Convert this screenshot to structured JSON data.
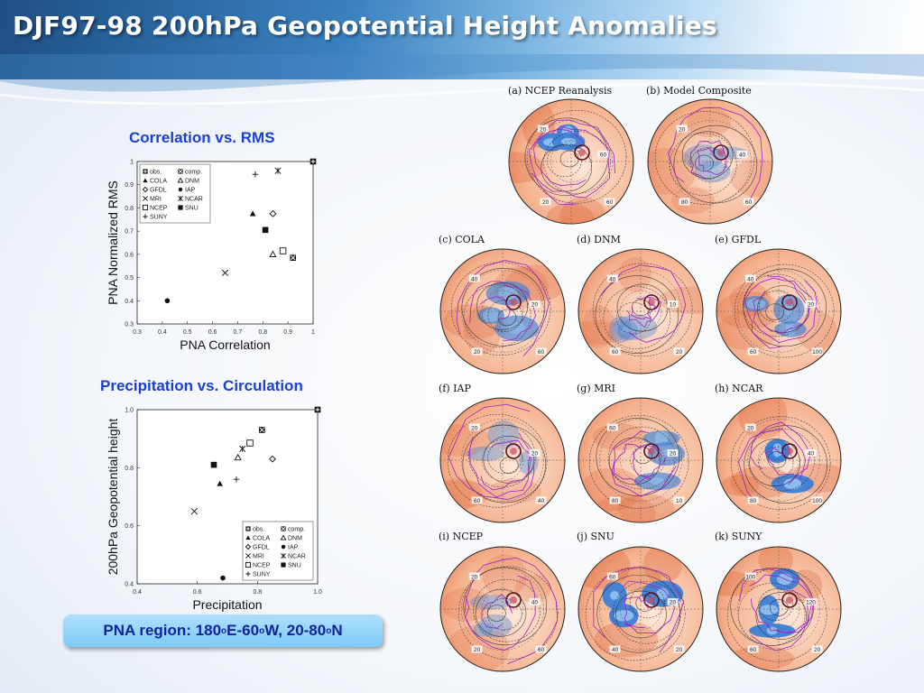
{
  "header": {
    "title": "DJF97-98 200hPa Geopotential Height Anomalies"
  },
  "sections": {
    "corr_rms_title": "Correlation vs. RMS",
    "precip_circ_title": "Precipitation vs. Circulation"
  },
  "pna_region": {
    "prefix": "PNA region: 180",
    "s1": "o",
    "mid1": "E-60",
    "s2": "o",
    "mid2": "W, 20-80",
    "s3": "o",
    "suffix": "N"
  },
  "colors": {
    "accent": "#1a3fd2",
    "banner": "#7ecbf7",
    "positive": "#e07a50",
    "negative": "#3d7fd6",
    "coast": "#a020c8"
  },
  "chart_data": [
    {
      "type": "scatter",
      "title": "",
      "xlabel": "PNA Correlation",
      "ylabel": "PNA Normalized RMS",
      "xlim": [
        0.3,
        1.0
      ],
      "ylim": [
        0.3,
        1.0
      ],
      "xticks": [
        "0.3",
        "0.4",
        "0.5",
        "0.6",
        "0.7",
        "0.8",
        "0.9",
        "1"
      ],
      "yticks": [
        "0.3",
        "0.4",
        "0.5",
        "0.6",
        "0.7",
        "0.8",
        "0.9",
        "1"
      ],
      "legend_position": "top-left",
      "legend": [
        {
          "name": "obs.",
          "marker": "plus-square"
        },
        {
          "name": "comp.",
          "marker": "x-square"
        },
        {
          "name": "COLA",
          "marker": "filled-triangle"
        },
        {
          "name": "DNM",
          "marker": "open-triangle"
        },
        {
          "name": "GFDL",
          "marker": "open-diamond"
        },
        {
          "name": "IAP",
          "marker": "filled-circle"
        },
        {
          "name": "MRI",
          "marker": "cross"
        },
        {
          "name": "NCAR",
          "marker": "asterisk"
        },
        {
          "name": "NCEP",
          "marker": "open-square"
        },
        {
          "name": "SNU",
          "marker": "filled-square"
        },
        {
          "name": "SUNY",
          "marker": "plus"
        }
      ],
      "series": [
        {
          "name": "obs.",
          "x": [
            1.0
          ],
          "y": [
            1.0
          ]
        },
        {
          "name": "comp.",
          "x": [
            0.92
          ],
          "y": [
            0.585
          ]
        },
        {
          "name": "COLA",
          "x": [
            0.76
          ],
          "y": [
            0.775
          ]
        },
        {
          "name": "DNM",
          "x": [
            0.84
          ],
          "y": [
            0.6
          ]
        },
        {
          "name": "GFDL",
          "x": [
            0.84
          ],
          "y": [
            0.775
          ]
        },
        {
          "name": "IAP",
          "x": [
            0.42
          ],
          "y": [
            0.4
          ]
        },
        {
          "name": "MRI",
          "x": [
            0.65
          ],
          "y": [
            0.52
          ]
        },
        {
          "name": "NCAR",
          "x": [
            0.86
          ],
          "y": [
            0.96
          ]
        },
        {
          "name": "NCEP",
          "x": [
            0.88
          ],
          "y": [
            0.615
          ]
        },
        {
          "name": "SNU",
          "x": [
            0.81
          ],
          "y": [
            0.705
          ]
        },
        {
          "name": "SUNY",
          "x": [
            0.77
          ],
          "y": [
            0.945
          ]
        }
      ]
    },
    {
      "type": "scatter",
      "title": "",
      "xlabel": "Precipitation",
      "ylabel": "200hPa Geopotential height",
      "xlim": [
        0.4,
        1.0
      ],
      "ylim": [
        0.4,
        1.0
      ],
      "xticks": [
        "0.4",
        "0.6",
        "0.8",
        "1.0"
      ],
      "yticks": [
        "0.4",
        "0.6",
        "0.8",
        "1.0"
      ],
      "legend_position": "bottom-right",
      "legend": [
        {
          "name": "obs.",
          "marker": "plus-square"
        },
        {
          "name": "comp.",
          "marker": "x-square"
        },
        {
          "name": "COLA",
          "marker": "filled-triangle"
        },
        {
          "name": "DNM",
          "marker": "open-triangle"
        },
        {
          "name": "GFDL",
          "marker": "open-diamond"
        },
        {
          "name": "IAP",
          "marker": "filled-circle"
        },
        {
          "name": "MRI",
          "marker": "cross"
        },
        {
          "name": "NCAR",
          "marker": "asterisk"
        },
        {
          "name": "NCEP",
          "marker": "open-square"
        },
        {
          "name": "SNU",
          "marker": "filled-square"
        },
        {
          "name": "SUNY",
          "marker": "plus"
        }
      ],
      "series": [
        {
          "name": "obs.",
          "x": [
            1.0
          ],
          "y": [
            1.0
          ]
        },
        {
          "name": "comp.",
          "x": [
            0.815
          ],
          "y": [
            0.93
          ]
        },
        {
          "name": "COLA",
          "x": [
            0.675
          ],
          "y": [
            0.745
          ]
        },
        {
          "name": "DNM",
          "x": [
            0.735
          ],
          "y": [
            0.835
          ]
        },
        {
          "name": "GFDL",
          "x": [
            0.85
          ],
          "y": [
            0.83
          ]
        },
        {
          "name": "IAP",
          "x": [
            0.685
          ],
          "y": [
            0.42
          ]
        },
        {
          "name": "MRI",
          "x": [
            0.59
          ],
          "y": [
            0.65
          ]
        },
        {
          "name": "NCAR",
          "x": [
            0.75
          ],
          "y": [
            0.865
          ]
        },
        {
          "name": "NCEP",
          "x": [
            0.775
          ],
          "y": [
            0.885
          ]
        },
        {
          "name": "SNU",
          "x": [
            0.655
          ],
          "y": [
            0.81
          ]
        },
        {
          "name": "SUNY",
          "x": [
            0.73
          ],
          "y": [
            0.76
          ]
        }
      ]
    }
  ],
  "maps": [
    {
      "id": "a",
      "label": "(a) NCEP Reanalysis",
      "contours": [
        "20",
        "60",
        "60",
        "20"
      ],
      "style": "strong-blue"
    },
    {
      "id": "b",
      "label": "(b) Model Composite",
      "contours": [
        "20",
        "40",
        "60",
        "80"
      ],
      "style": "weak-blue"
    },
    {
      "id": "c",
      "label": "(c) COLA",
      "contours": [
        "40",
        "20",
        "60",
        "20"
      ],
      "style": "mid-blue"
    },
    {
      "id": "d",
      "label": "(d) DNM",
      "contours": [
        "40",
        "10",
        "20",
        "60"
      ],
      "style": "weak-blue"
    },
    {
      "id": "e",
      "label": "(e) GFDL",
      "contours": [
        "40",
        "20",
        "100",
        "60"
      ],
      "style": "mid-blue"
    },
    {
      "id": "f",
      "label": "(f) IAP",
      "contours": [
        "20",
        "20",
        "40",
        "60"
      ],
      "style": "weak-blue"
    },
    {
      "id": "g",
      "label": "(g) MRI",
      "contours": [
        "60",
        "20",
        "10",
        "80"
      ],
      "style": "mid-blue"
    },
    {
      "id": "h",
      "label": "(h) NCAR",
      "contours": [
        "20",
        "40",
        "100",
        "80"
      ],
      "style": "strong-blue"
    },
    {
      "id": "i",
      "label": "(i) NCEP",
      "contours": [
        "20",
        "40",
        "60",
        "20"
      ],
      "style": "weak-blue"
    },
    {
      "id": "j",
      "label": "(j) SNU",
      "contours": [
        "60",
        "20",
        "20",
        "40"
      ],
      "style": "strong-blue"
    },
    {
      "id": "k",
      "label": "(k) SUNY",
      "contours": [
        "100",
        "120",
        "20",
        "60"
      ],
      "style": "strong-blue"
    }
  ]
}
